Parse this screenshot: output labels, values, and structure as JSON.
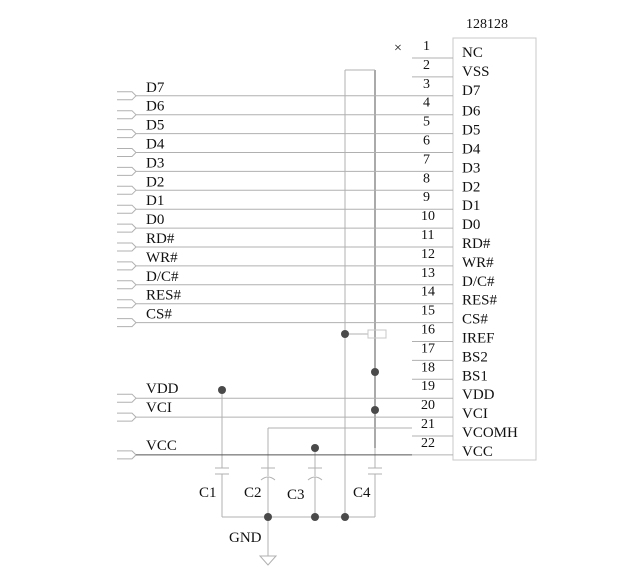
{
  "chip": {
    "name": "128128",
    "pins": [
      {
        "num": "1",
        "name": "NC"
      },
      {
        "num": "2",
        "name": "VSS"
      },
      {
        "num": "3",
        "name": "D7"
      },
      {
        "num": "4",
        "name": "D6"
      },
      {
        "num": "5",
        "name": "D5"
      },
      {
        "num": "6",
        "name": "D4"
      },
      {
        "num": "7",
        "name": "D3"
      },
      {
        "num": "8",
        "name": "D2"
      },
      {
        "num": "9",
        "name": "D1"
      },
      {
        "num": "10",
        "name": "D0"
      },
      {
        "num": "11",
        "name": "RD#"
      },
      {
        "num": "12",
        "name": "WR#"
      },
      {
        "num": "13",
        "name": "D/C#"
      },
      {
        "num": "14",
        "name": "RES#"
      },
      {
        "num": "15",
        "name": "CS#"
      },
      {
        "num": "16",
        "name": "IREF"
      },
      {
        "num": "17",
        "name": "BS2"
      },
      {
        "num": "18",
        "name": "BS1"
      },
      {
        "num": "19",
        "name": "VDD"
      },
      {
        "num": "20",
        "name": "VCI"
      },
      {
        "num": "21",
        "name": "VCOMH"
      },
      {
        "num": "22",
        "name": "VCC"
      }
    ]
  },
  "ports": [
    {
      "name": "D7"
    },
    {
      "name": "D6"
    },
    {
      "name": "D5"
    },
    {
      "name": "D4"
    },
    {
      "name": "D3"
    },
    {
      "name": "D2"
    },
    {
      "name": "D1"
    },
    {
      "name": "D0"
    },
    {
      "name": "RD#"
    },
    {
      "name": "WR#"
    },
    {
      "name": "D/C#"
    },
    {
      "name": "RES#"
    },
    {
      "name": "CS#"
    }
  ],
  "power_ports": [
    {
      "name": "VDD"
    },
    {
      "name": "VCI"
    },
    {
      "name": "VCC"
    }
  ],
  "capacitors": [
    {
      "name": "C1"
    },
    {
      "name": "C2"
    },
    {
      "name": "C3"
    },
    {
      "name": "C4"
    }
  ],
  "ground_label": "GND"
}
